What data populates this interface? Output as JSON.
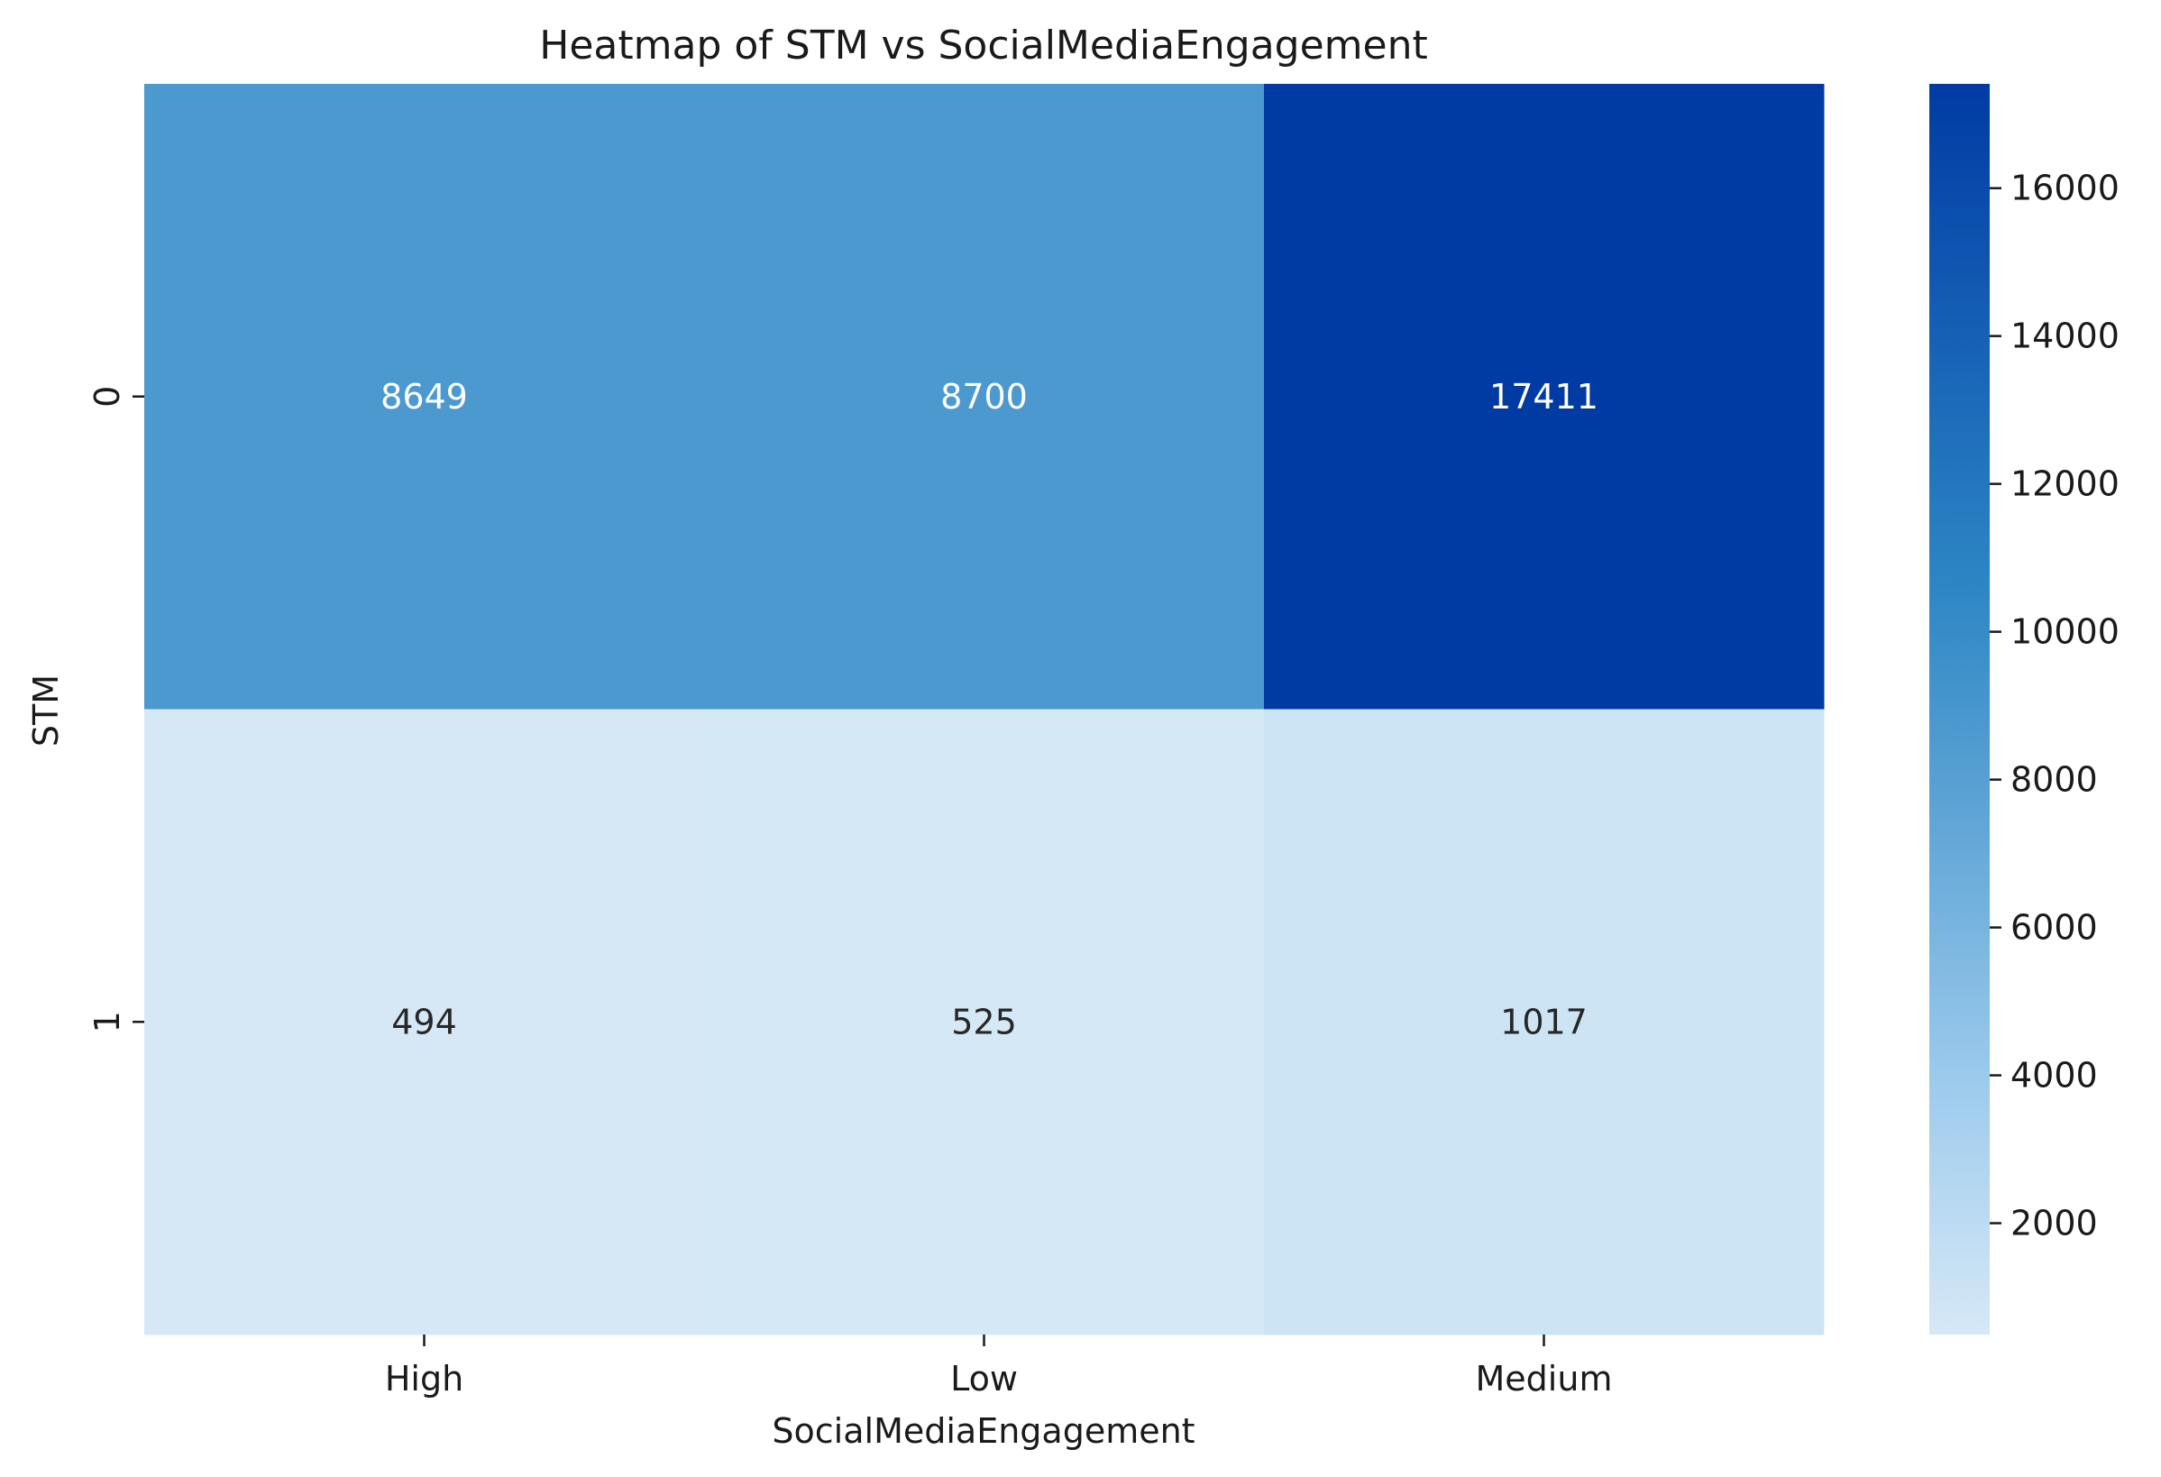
{
  "chart_data": {
    "type": "heatmap",
    "title": "Heatmap of STM vs SocialMediaEngagement",
    "xlabel": "SocialMediaEngagement",
    "ylabel": "STM",
    "x_categories": [
      "High",
      "Low",
      "Medium"
    ],
    "y_categories": [
      "0",
      "1"
    ],
    "values": [
      [
        8649,
        8700,
        17411
      ],
      [
        494,
        525,
        1017
      ]
    ],
    "colorbar": {
      "min": 494,
      "max": 17411,
      "ticks": [
        2000,
        4000,
        6000,
        8000,
        10000,
        12000,
        14000,
        16000
      ],
      "tick_labels": [
        "2000",
        "4000",
        "6000",
        "8000",
        "10000",
        "12000",
        "14000",
        "16000"
      ]
    },
    "colormap": [
      "#d6e8f6",
      "#9dcbed",
      "#63a7d7",
      "#2c86c4",
      "#1660b6",
      "#003ba3"
    ],
    "grid": false,
    "legend": "colorbar-right"
  }
}
